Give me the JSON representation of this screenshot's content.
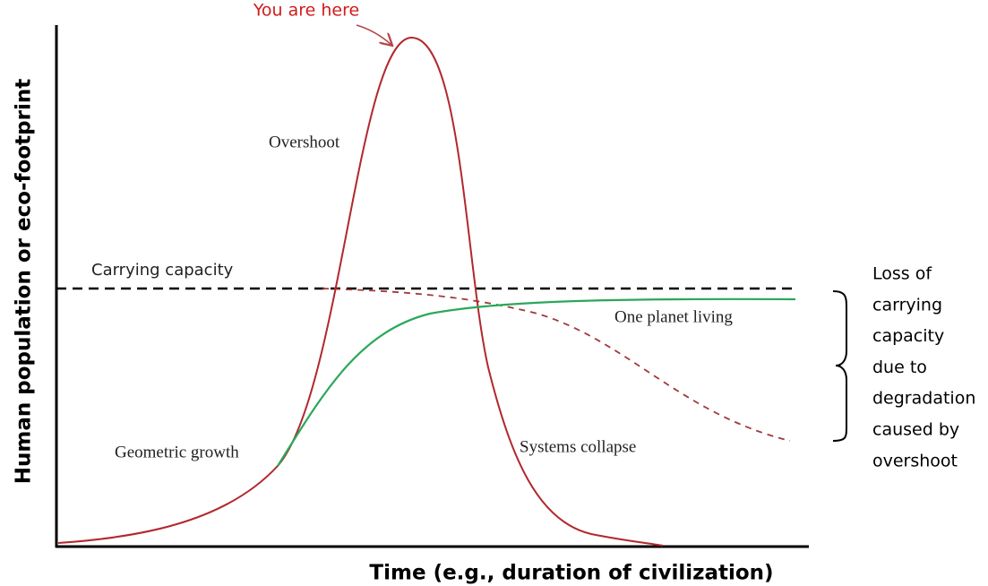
{
  "pointer": "You are here",
  "labels": {
    "overshoot": "Overshoot",
    "carrying_capacity": "Carrying capacity",
    "one_planet_living": "One planet living",
    "geometric_growth": "Geometric growth",
    "systems_collapse": "Systems collapse"
  },
  "annotation": {
    "lines": [
      "Loss of",
      "carrying",
      "capacity",
      "due to",
      "degradation",
      "caused by",
      "overshoot"
    ]
  },
  "axes": {
    "y_label": "Human population or eco-footprint",
    "x_label": "Time (e.g., duration of civilization)"
  }
}
